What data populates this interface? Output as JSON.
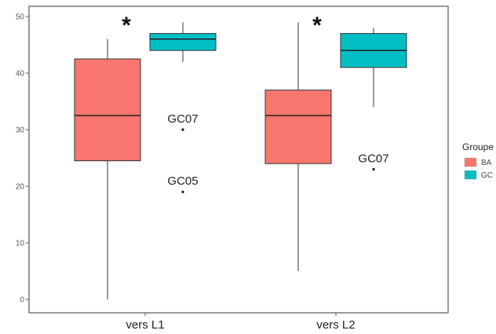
{
  "chart_data": {
    "type": "boxplot",
    "categories": [
      "vers L1",
      "vers L2"
    ],
    "ylim": [
      0,
      50
    ],
    "yticks": [
      0,
      10,
      20,
      30,
      40,
      50
    ],
    "grid": false,
    "legend": {
      "title": "Groupe",
      "placement": "right",
      "items": [
        {
          "name": "BA",
          "color": "#f8766d"
        },
        {
          "name": "GC",
          "color": "#00bfc4"
        }
      ]
    },
    "series": [
      {
        "name": "BA",
        "color": "#f8766d",
        "boxes": [
          {
            "category": "vers L1",
            "whisker_low": 0,
            "q1": 24.5,
            "median": 32.5,
            "q3": 42.5,
            "whisker_high": 46
          },
          {
            "category": "vers L2",
            "whisker_low": 5,
            "q1": 24,
            "median": 32.5,
            "q3": 37,
            "whisker_high": 49
          }
        ]
      },
      {
        "name": "GC",
        "color": "#00bfc4",
        "boxes": [
          {
            "category": "vers L1",
            "whisker_low": 42,
            "q1": 44,
            "median": 46,
            "q3": 47,
            "whisker_high": 49
          },
          {
            "category": "vers L2",
            "whisker_low": 34,
            "q1": 41,
            "median": 44,
            "q3": 47,
            "whisker_high": 48
          },
          {
            "category": "vers L1",
            "outliers": [
              {
                "y": 30,
                "label": "GC07"
              },
              {
                "y": 19,
                "label": "GC05"
              }
            ]
          },
          {
            "category": "vers L2",
            "outliers": [
              {
                "y": 23,
                "label": "GC07"
              }
            ]
          }
        ]
      }
    ],
    "annotations": [
      {
        "category": "vers L1",
        "text": "*"
      },
      {
        "category": "vers L2",
        "text": "*"
      }
    ]
  }
}
